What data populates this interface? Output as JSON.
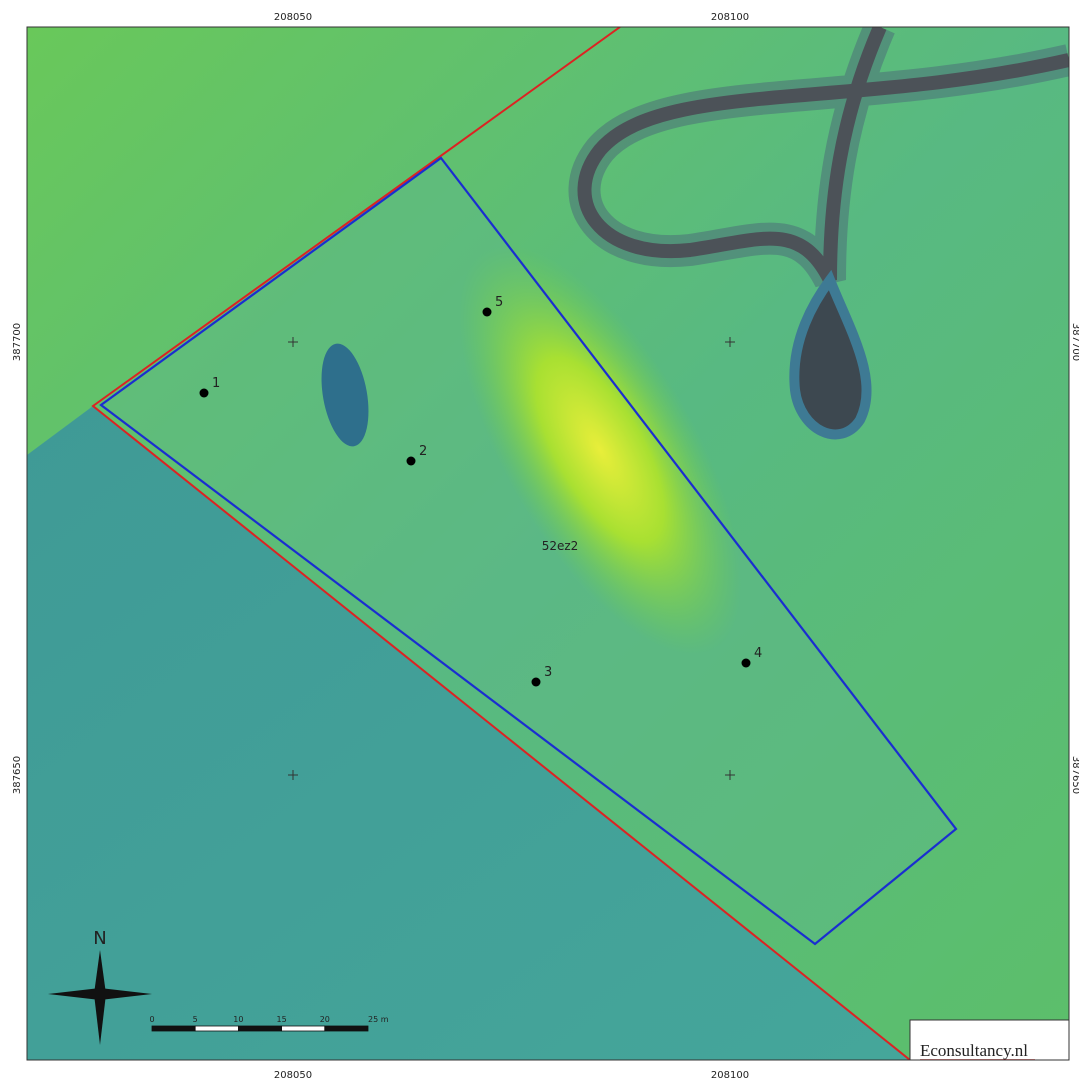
{
  "map": {
    "grid_labels": {
      "top": [
        "208050",
        "208100"
      ],
      "bottom": [
        "208050",
        "208100"
      ],
      "left": [
        "387700",
        "387650"
      ],
      "right": [
        "387700",
        "387650"
      ]
    },
    "area_label": "52ez2",
    "points": [
      {
        "label": "1"
      },
      {
        "label": "2"
      },
      {
        "label": "3"
      },
      {
        "label": "4"
      },
      {
        "label": "5"
      }
    ],
    "north_arrow": "N",
    "scale_bar": [
      "0",
      "5",
      "10",
      "15",
      "20",
      "25 m"
    ],
    "logo": "Econsultancy.nl"
  }
}
